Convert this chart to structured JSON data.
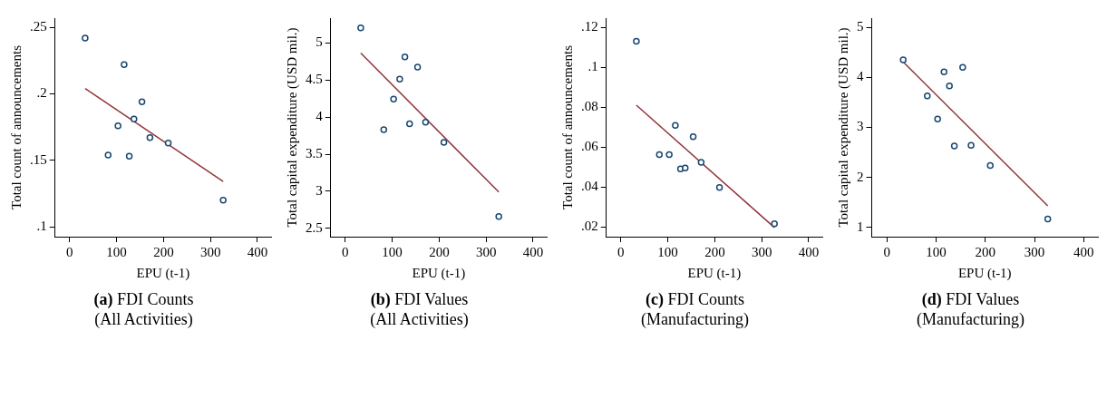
{
  "chart_data": [
    {
      "type": "scatter",
      "title": "(a) FDI Counts",
      "subtitle": "(All Activities)",
      "xlabel": "EPU (t-1)",
      "ylabel": "Total count of announcements",
      "xlim": [
        -31,
        429
      ],
      "xticks": [
        0,
        100,
        200,
        300,
        400
      ],
      "ylim": [
        0.0925,
        0.257
      ],
      "yticks": [
        {
          "value": 0.1,
          "label": ".1"
        },
        {
          "value": 0.15,
          "label": ".15"
        },
        {
          "value": 0.2,
          "label": ".2"
        },
        {
          "value": 0.25,
          "label": ".25"
        }
      ],
      "series": [
        {
          "marker": "circle",
          "color": "#1a476f",
          "x": [
            33,
            82,
            103,
            116,
            127,
            137,
            154,
            171,
            210,
            327
          ],
          "values": [
            0.242,
            0.154,
            0.176,
            0.222,
            0.153,
            0.181,
            0.194,
            0.167,
            0.163,
            0.12
          ]
        },
        {
          "type": "line",
          "marker": "none",
          "color": "#90353b",
          "x": [
            33,
            327
          ],
          "values": [
            0.204,
            0.134
          ]
        }
      ]
    },
    {
      "type": "scatter",
      "title": "(b) FDI Values",
      "subtitle": "(All Activities)",
      "xlabel": "EPU (t-1)",
      "ylabel": "Total capital expenditure (USD mil.)",
      "xlim": [
        -31,
        429
      ],
      "xticks": [
        0,
        100,
        200,
        300,
        400
      ],
      "ylim": [
        2.39,
        5.33
      ],
      "yticks": [
        2.5,
        3,
        3.5,
        4,
        4.5,
        5
      ],
      "series": [
        {
          "marker": "circle",
          "color": "#1a476f",
          "x": [
            33,
            82,
            103,
            116,
            127,
            137,
            154,
            171,
            210,
            327
          ],
          "values": [
            5.2,
            3.83,
            4.24,
            4.51,
            4.81,
            3.91,
            4.67,
            3.93,
            3.66,
            2.66
          ]
        },
        {
          "type": "line",
          "marker": "none",
          "color": "#90353b",
          "x": [
            33,
            327
          ],
          "values": [
            4.86,
            2.99
          ]
        }
      ]
    },
    {
      "type": "scatter",
      "title": "(c) FDI Counts",
      "subtitle": "(Manufacturing)",
      "xlabel": "EPU (t-1)",
      "ylabel": "Total count of announcements",
      "xlim": [
        -31,
        429
      ],
      "xticks": [
        0,
        100,
        200,
        300,
        400
      ],
      "ylim": [
        0.0151,
        0.1246
      ],
      "yticks": [
        {
          "value": 0.02,
          "label": ".02"
        },
        {
          "value": 0.04,
          "label": ".04"
        },
        {
          "value": 0.06,
          "label": ".06"
        },
        {
          "value": 0.08,
          "label": ".08"
        },
        {
          "value": 0.1,
          "label": ".1"
        },
        {
          "value": 0.12,
          "label": ".12"
        }
      ],
      "series": [
        {
          "marker": "circle",
          "color": "#1a476f",
          "x": [
            33,
            82,
            103,
            116,
            127,
            137,
            154,
            171,
            210,
            327
          ],
          "values": [
            0.113,
            0.0562,
            0.0562,
            0.0709,
            0.0491,
            0.0495,
            0.0652,
            0.0524,
            0.0398,
            0.0216
          ]
        },
        {
          "type": "line",
          "marker": "none",
          "color": "#90353b",
          "x": [
            33,
            327
          ],
          "values": [
            0.081,
            0.0197
          ]
        }
      ]
    },
    {
      "type": "scatter",
      "title": "(d) FDI Values",
      "subtitle": "(Manufacturing)",
      "xlabel": "EPU (t-1)",
      "ylabel": "Total capital expenditure (USD mil.)",
      "xlim": [
        -31,
        429
      ],
      "xticks": [
        0,
        100,
        200,
        300,
        400
      ],
      "ylim": [
        0.815,
        5.185
      ],
      "yticks": [
        1,
        2,
        3,
        4,
        5
      ],
      "series": [
        {
          "marker": "circle",
          "color": "#1a476f",
          "x": [
            33,
            82,
            103,
            116,
            127,
            137,
            154,
            171,
            210,
            327
          ],
          "values": [
            4.35,
            3.63,
            3.17,
            4.11,
            3.83,
            2.63,
            4.2,
            2.64,
            2.24,
            1.17
          ]
        },
        {
          "type": "line",
          "marker": "none",
          "color": "#90353b",
          "x": [
            33,
            327
          ],
          "values": [
            4.31,
            1.43
          ]
        }
      ]
    }
  ]
}
